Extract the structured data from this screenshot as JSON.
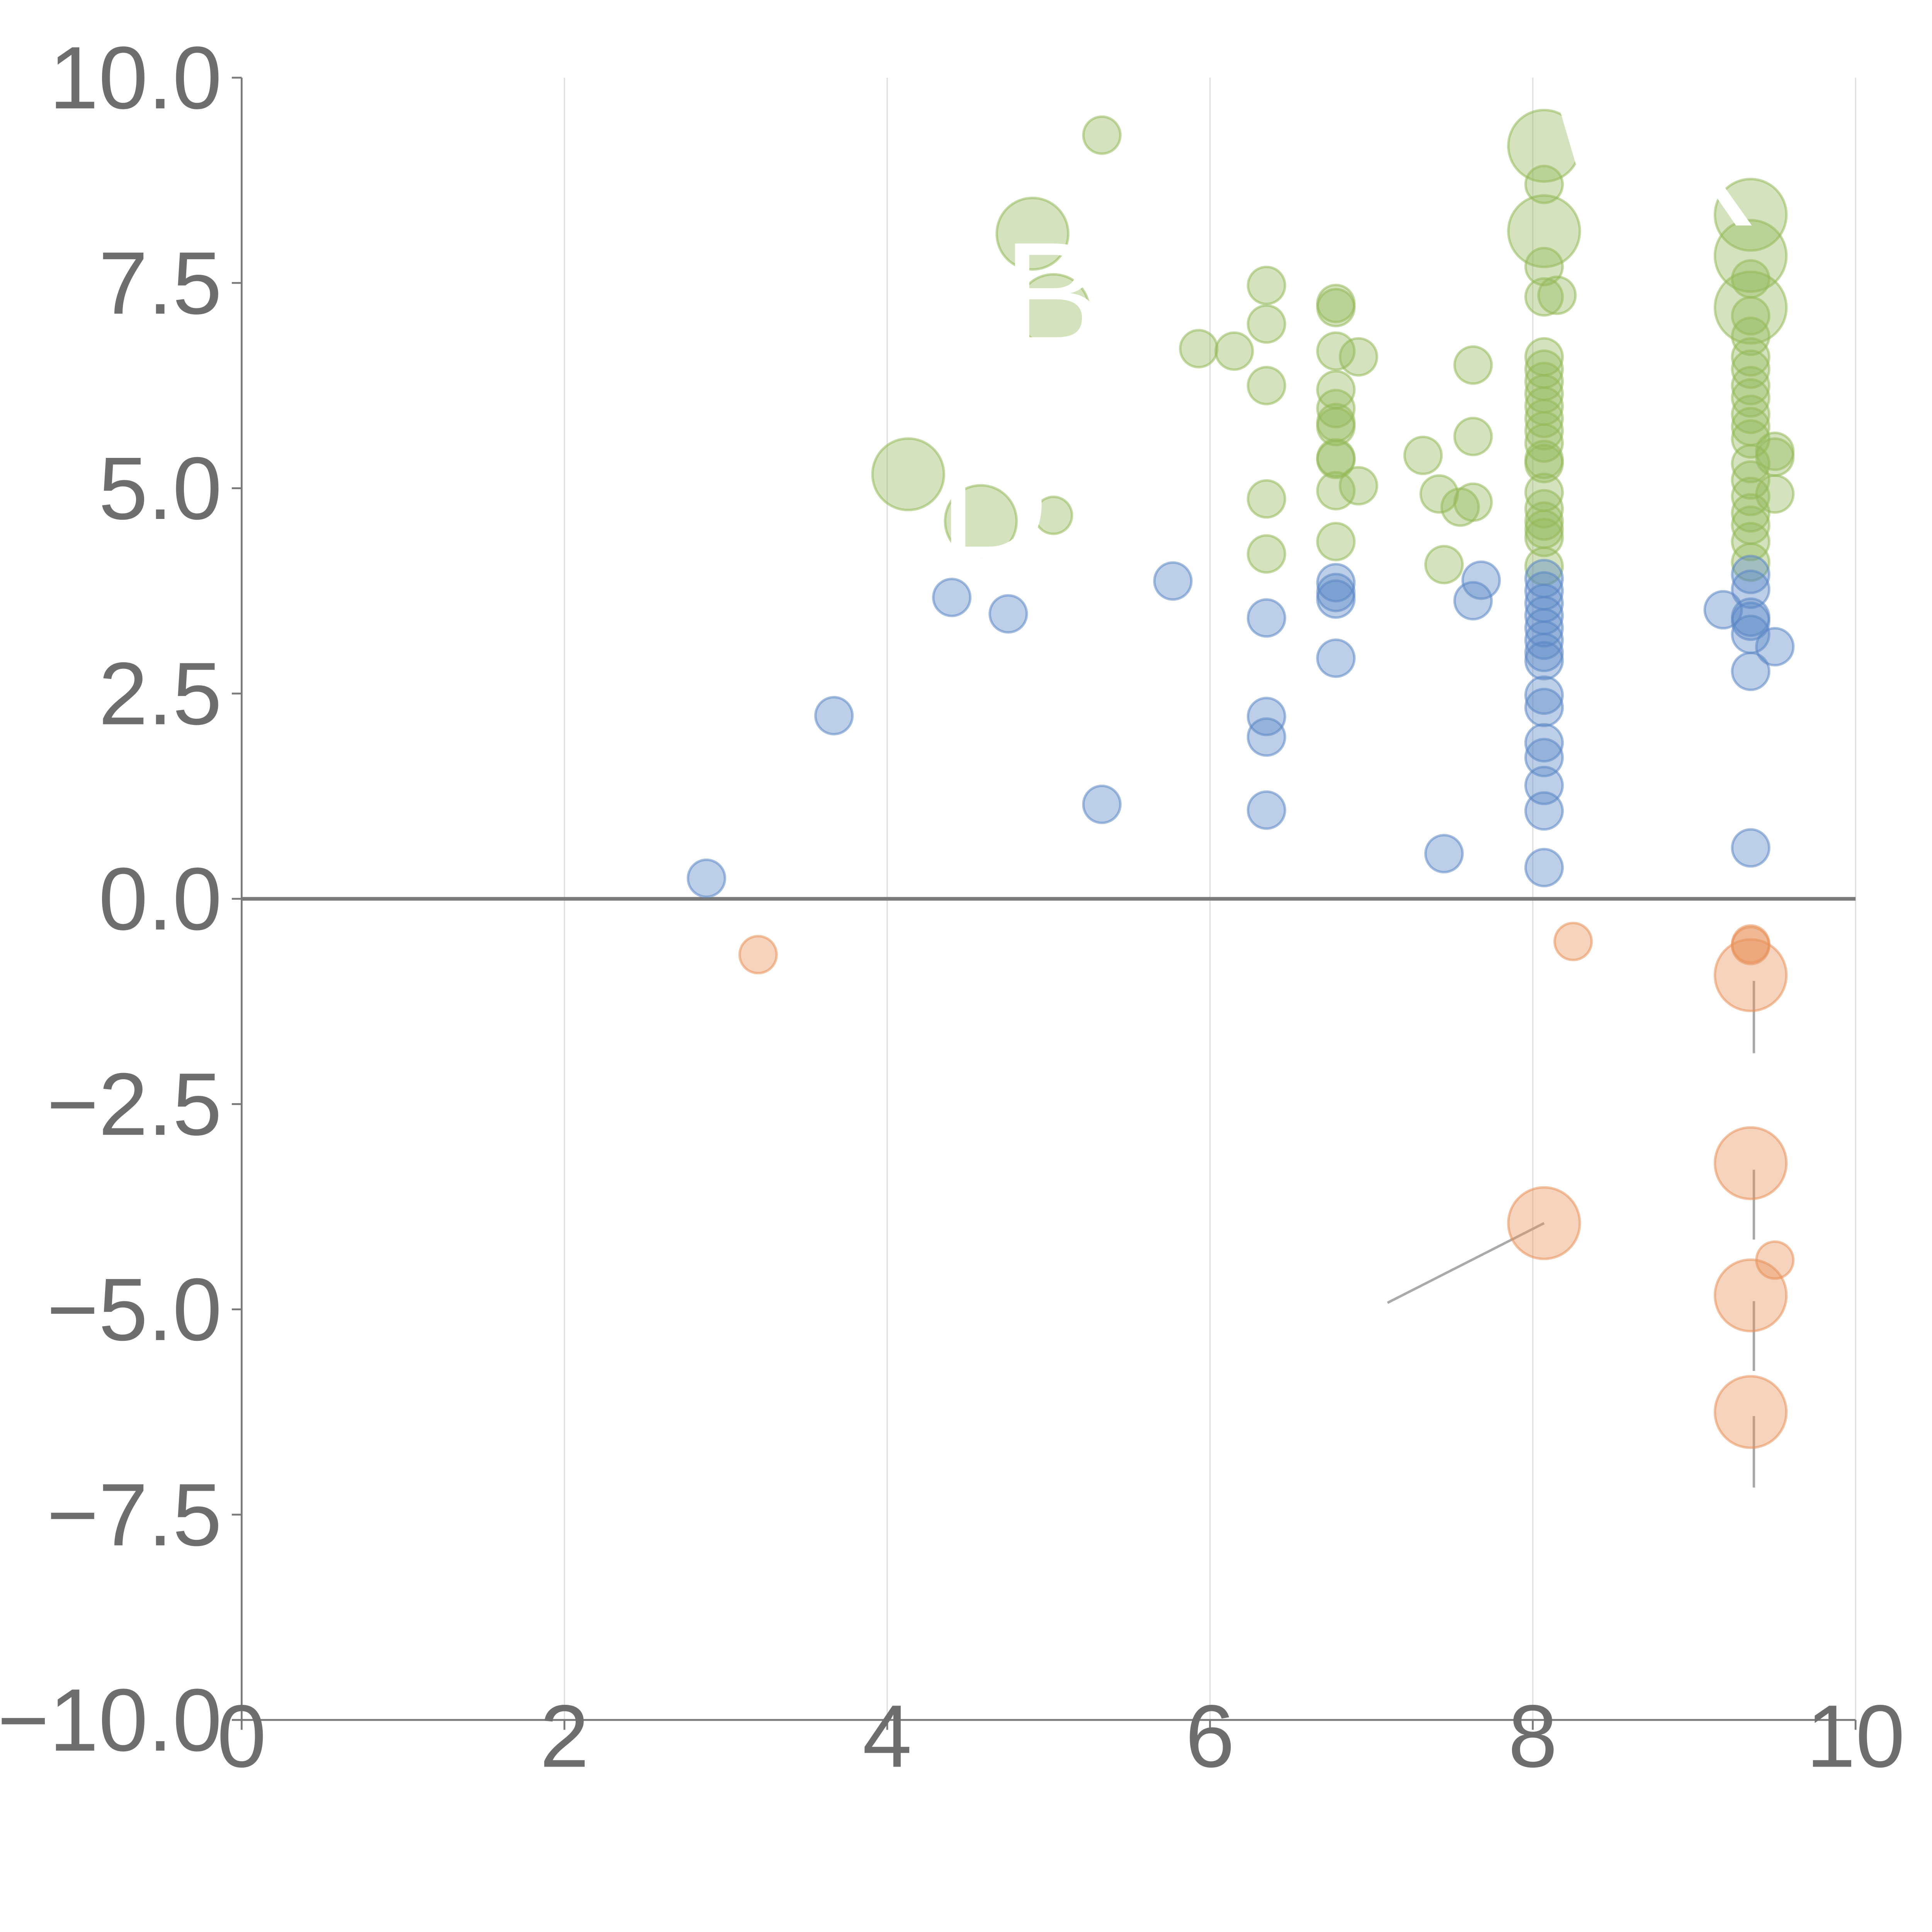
{
  "chart_data": {
    "type": "scatter",
    "title": "",
    "xlabel": "",
    "ylabel": "",
    "xlim": [
      0,
      10
    ],
    "ylim": [
      -10,
      10
    ],
    "x_ticks": [
      0,
      2,
      4,
      6,
      8,
      10
    ],
    "y_ticks": [
      10,
      7.5,
      5,
      2.5,
      0,
      -2.5,
      -5,
      -7.5,
      -10
    ],
    "x_tick_labels": [
      "0",
      "2",
      "4",
      "6",
      "8",
      "10"
    ],
    "y_tick_labels": [
      "10.0",
      "7.5",
      "5.0",
      "2.5",
      "0.0",
      "−2.5",
      "−5.0",
      "−7.5",
      "−10.0"
    ],
    "vertical_gridlines": true,
    "colors": {
      "green": "#93b95a",
      "blue": "#5b87c5",
      "orange": "#e8925a",
      "axis": "#7a7a7a",
      "grid": "#dedede"
    },
    "series": [
      {
        "name": "green",
        "color": "#93b95a",
        "points": [
          [
            5.33,
            9.3,
            1
          ],
          [
            4.9,
            8.1,
            3
          ],
          [
            5.03,
            7.17,
            3
          ],
          [
            4.13,
            5.17,
            3
          ],
          [
            4.58,
            4.6,
            3
          ],
          [
            5.03,
            4.67,
            1
          ],
          [
            5.93,
            6.7,
            1
          ],
          [
            6.15,
            6.67,
            1
          ],
          [
            6.35,
            7.47,
            1
          ],
          [
            6.35,
            7.0,
            1
          ],
          [
            6.35,
            6.25,
            1
          ],
          [
            6.35,
            4.87,
            1
          ],
          [
            6.35,
            4.2,
            1
          ],
          [
            6.78,
            7.25,
            1
          ],
          [
            6.78,
            7.2,
            1
          ],
          [
            6.78,
            6.67,
            1
          ],
          [
            6.78,
            6.2,
            1
          ],
          [
            6.78,
            5.97,
            1
          ],
          [
            6.78,
            5.8,
            1
          ],
          [
            6.78,
            5.75,
            1
          ],
          [
            6.78,
            5.37,
            1
          ],
          [
            6.78,
            5.35,
            1
          ],
          [
            6.78,
            4.97,
            1
          ],
          [
            6.78,
            4.35,
            1
          ],
          [
            6.92,
            6.6,
            1
          ],
          [
            6.92,
            5.03,
            1
          ],
          [
            7.32,
            5.4,
            1
          ],
          [
            7.42,
            4.93,
            1
          ],
          [
            7.45,
            4.07,
            1
          ],
          [
            7.55,
            4.77,
            1
          ],
          [
            7.63,
            6.5,
            1
          ],
          [
            7.63,
            5.63,
            1
          ],
          [
            7.63,
            4.83,
            1
          ],
          [
            8.07,
            9.17,
            3
          ],
          [
            8.07,
            8.13,
            3
          ],
          [
            8.07,
            8.7,
            1
          ],
          [
            8.07,
            7.7,
            1
          ],
          [
            8.07,
            7.33,
            1
          ],
          [
            8.15,
            7.35,
            1
          ],
          [
            8.07,
            6.6,
            1
          ],
          [
            8.07,
            6.45,
            1
          ],
          [
            8.07,
            6.3,
            1
          ],
          [
            8.07,
            6.15,
            1
          ],
          [
            8.07,
            6.0,
            1
          ],
          [
            8.07,
            5.85,
            1
          ],
          [
            8.07,
            5.7,
            1
          ],
          [
            8.07,
            5.55,
            1
          ],
          [
            8.07,
            5.35,
            1
          ],
          [
            8.07,
            5.3,
            1
          ],
          [
            8.07,
            4.95,
            1
          ],
          [
            8.07,
            4.75,
            1
          ],
          [
            8.07,
            4.6,
            1
          ],
          [
            8.07,
            4.5,
            1
          ],
          [
            8.07,
            4.4,
            1
          ],
          [
            8.07,
            4.05,
            1
          ],
          [
            9.35,
            8.33,
            3
          ],
          [
            9.35,
            7.83,
            3
          ],
          [
            9.35,
            7.2,
            3
          ],
          [
            9.35,
            7.55,
            1
          ],
          [
            9.35,
            7.1,
            1
          ],
          [
            9.35,
            6.85,
            1
          ],
          [
            9.35,
            6.6,
            1
          ],
          [
            9.35,
            6.45,
            1
          ],
          [
            9.35,
            6.25,
            1
          ],
          [
            9.35,
            6.1,
            1
          ],
          [
            9.35,
            5.9,
            1
          ],
          [
            9.35,
            5.75,
            1
          ],
          [
            9.35,
            5.6,
            1
          ],
          [
            9.35,
            5.3,
            1
          ],
          [
            9.35,
            5.1,
            1
          ],
          [
            9.35,
            4.9,
            1
          ],
          [
            9.35,
            4.7,
            1
          ],
          [
            9.35,
            4.55,
            1
          ],
          [
            9.35,
            4.35,
            1
          ],
          [
            9.35,
            4.1,
            1
          ],
          [
            9.5,
            5.45,
            1
          ],
          [
            9.5,
            5.38,
            1
          ],
          [
            9.5,
            4.93,
            1
          ]
        ]
      },
      {
        "name": "blue",
        "color": "#5b87c5",
        "points": [
          [
            2.88,
            0.25,
            1
          ],
          [
            3.67,
            2.23,
            1
          ],
          [
            4.4,
            3.67,
            1
          ],
          [
            4.75,
            3.47,
            1
          ],
          [
            5.33,
            1.15,
            1
          ],
          [
            5.77,
            3.87,
            1
          ],
          [
            6.35,
            3.42,
            1
          ],
          [
            6.35,
            2.22,
            1
          ],
          [
            6.35,
            1.97,
            1
          ],
          [
            6.35,
            1.08,
            1
          ],
          [
            6.78,
            3.85,
            1
          ],
          [
            6.78,
            3.73,
            1
          ],
          [
            6.78,
            3.65,
            1
          ],
          [
            6.78,
            2.93,
            1
          ],
          [
            7.45,
            0.55,
            1
          ],
          [
            7.63,
            3.63,
            1
          ],
          [
            7.68,
            3.88,
            1
          ],
          [
            8.07,
            3.9,
            1
          ],
          [
            8.07,
            3.75,
            1
          ],
          [
            8.07,
            3.6,
            1
          ],
          [
            8.07,
            3.45,
            1
          ],
          [
            8.07,
            3.3,
            1
          ],
          [
            8.07,
            3.15,
            1
          ],
          [
            8.07,
            3.0,
            1
          ],
          [
            8.07,
            2.9,
            1
          ],
          [
            8.07,
            2.48,
            1
          ],
          [
            8.07,
            2.33,
            1
          ],
          [
            8.07,
            1.9,
            1
          ],
          [
            8.07,
            1.72,
            1
          ],
          [
            8.07,
            1.38,
            1
          ],
          [
            8.07,
            1.07,
            1
          ],
          [
            8.07,
            0.38,
            1
          ],
          [
            9.18,
            3.52,
            1
          ],
          [
            9.35,
            3.95,
            1
          ],
          [
            9.35,
            3.77,
            1
          ],
          [
            9.35,
            3.43,
            1
          ],
          [
            9.35,
            3.38,
            1
          ],
          [
            9.35,
            3.22,
            1
          ],
          [
            9.35,
            2.77,
            1
          ],
          [
            9.35,
            0.62,
            1
          ],
          [
            9.5,
            3.07,
            1
          ]
        ]
      },
      {
        "name": "orange",
        "color": "#e8925a",
        "points": [
          [
            3.2,
            -0.68,
            1
          ],
          [
            8.25,
            -0.52,
            1
          ],
          [
            9.35,
            -0.57,
            1
          ],
          [
            9.35,
            -0.55,
            1
          ],
          [
            9.35,
            -0.93,
            3
          ],
          [
            9.35,
            -3.22,
            3
          ],
          [
            8.07,
            -3.95,
            3
          ],
          [
            9.5,
            -4.4,
            1
          ],
          [
            9.35,
            -4.83,
            3
          ],
          [
            9.35,
            -6.25,
            3
          ]
        ]
      }
    ],
    "leader_lines": [
      [
        8.07,
        -3.95,
        7.1,
        -4.92
      ],
      [
        9.37,
        -1.0,
        9.37,
        -1.88
      ],
      [
        9.37,
        -3.3,
        9.37,
        -4.15
      ],
      [
        9.37,
        -4.9,
        9.37,
        -5.75
      ],
      [
        9.37,
        -6.3,
        9.37,
        -7.17
      ]
    ],
    "annotations": [
      {
        "text": "W",
        "x": 8.07,
        "y": 8.95,
        "anchor": "start"
      },
      {
        "text": "XT",
        "x": 9.35,
        "y": 8.2,
        "anchor": "middle"
      },
      {
        "text": "B",
        "x": 5.03,
        "y": 6.7,
        "anchor": "middle"
      },
      {
        "text": "D",
        "x": 4.66,
        "y": 4.15,
        "anchor": "middle"
      }
    ]
  }
}
